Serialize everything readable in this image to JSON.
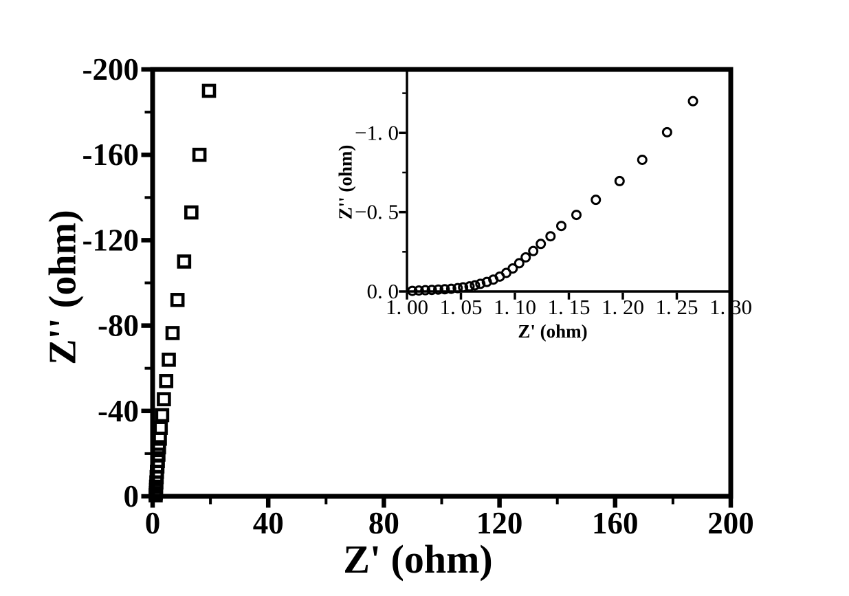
{
  "figure": {
    "background": "#ffffff",
    "ink": "#000000"
  },
  "chart_data": [
    {
      "id": "main",
      "type": "scatter",
      "marker": "open-square",
      "xlabel": "Z' (ohm)",
      "ylabel": "Z'' (ohm)",
      "xlim": [
        0,
        200
      ],
      "ylim": [
        0,
        -200
      ],
      "grid": false,
      "legend": false,
      "x_major_ticks": [
        0,
        40,
        80,
        120,
        160,
        200
      ],
      "x_tick_labels": [
        "0",
        "40",
        "80",
        "120",
        "160",
        "200"
      ],
      "x_minor_ticks": [
        20,
        60,
        100,
        140,
        180
      ],
      "y_major_ticks": [
        0,
        -40,
        -80,
        -120,
        -160,
        -200
      ],
      "y_tick_labels": [
        "0",
        "-40",
        "-80",
        "-120",
        "-160",
        "-200"
      ],
      "y_minor_ticks": [
        -20,
        -60,
        -100,
        -140,
        -180
      ],
      "points": [
        [
          1.05,
          -0.5
        ],
        [
          1.1,
          -1.5
        ],
        [
          1.15,
          -3
        ],
        [
          1.2,
          -4.5
        ],
        [
          1.3,
          -6.5
        ],
        [
          1.4,
          -9
        ],
        [
          1.5,
          -11.5
        ],
        [
          1.65,
          -14
        ],
        [
          1.8,
          -16.5
        ],
        [
          2.0,
          -19.5
        ],
        [
          2.2,
          -23
        ],
        [
          2.5,
          -27
        ],
        [
          2.8,
          -32
        ],
        [
          3.3,
          -38
        ],
        [
          3.9,
          -45.5
        ],
        [
          4.7,
          -54
        ],
        [
          5.6,
          -64
        ],
        [
          6.9,
          -76.5
        ],
        [
          8.6,
          -92
        ],
        [
          10.9,
          -110
        ],
        [
          13.4,
          -133
        ],
        [
          16.2,
          -160
        ],
        [
          19.5,
          -190
        ]
      ]
    },
    {
      "id": "inset",
      "type": "scatter",
      "marker": "open-circle",
      "xlabel": "Z' (ohm)",
      "ylabel": "Z'' (ohm)",
      "xlim": [
        1.0,
        1.3
      ],
      "ylim": [
        0,
        -1.4
      ],
      "grid": false,
      "legend": false,
      "x_major_ticks": [
        1.0,
        1.05,
        1.1,
        1.15,
        1.2,
        1.25,
        1.3
      ],
      "x_tick_labels": [
        "1. 00",
        "1. 05",
        "1. 10",
        "1. 15",
        "1. 20",
        "1. 25",
        "1. 30"
      ],
      "x_minor_ticks": [],
      "y_major_ticks": [
        0,
        -0.5,
        -1.0
      ],
      "y_tick_labels": [
        "0. 0",
        "−0. 5",
        "−1. 0"
      ],
      "y_minor_ticks": [
        -0.25,
        -0.75,
        -1.25
      ],
      "points": [
        [
          1.005,
          -0.004
        ],
        [
          1.011,
          -0.006
        ],
        [
          1.017,
          -0.008
        ],
        [
          1.023,
          -0.01
        ],
        [
          1.029,
          -0.012
        ],
        [
          1.035,
          -0.014
        ],
        [
          1.041,
          -0.017
        ],
        [
          1.047,
          -0.021
        ],
        [
          1.052,
          -0.026
        ],
        [
          1.058,
          -0.032
        ],
        [
          1.063,
          -0.039
        ],
        [
          1.068,
          -0.048
        ],
        [
          1.074,
          -0.06
        ],
        [
          1.08,
          -0.075
        ],
        [
          1.086,
          -0.094
        ],
        [
          1.092,
          -0.117
        ],
        [
          1.098,
          -0.145
        ],
        [
          1.104,
          -0.178
        ],
        [
          1.11,
          -0.215
        ],
        [
          1.117,
          -0.255
        ],
        [
          1.124,
          -0.3
        ],
        [
          1.133,
          -0.348
        ],
        [
          1.143,
          -0.413
        ],
        [
          1.157,
          -0.483
        ],
        [
          1.175,
          -0.578
        ],
        [
          1.197,
          -0.696
        ],
        [
          1.218,
          -0.83
        ],
        [
          1.241,
          -1.004
        ],
        [
          1.265,
          -1.2
        ]
      ]
    }
  ]
}
